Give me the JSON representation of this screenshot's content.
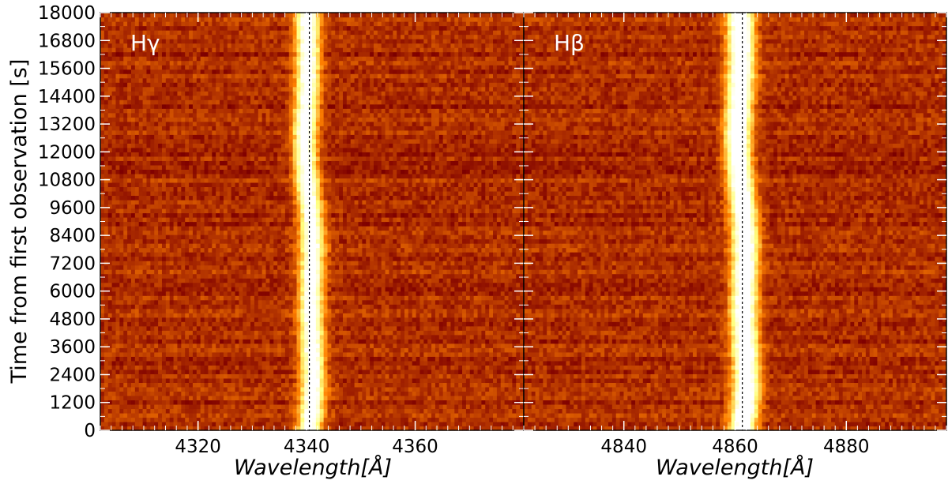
{
  "chart_data": [
    {
      "type": "heatmap",
      "panel_label": "Hγ",
      "xlabel": "Wavelength[Å]",
      "ylabel": "Time from first observation [s]",
      "xlim": [
        4302,
        4380
      ],
      "ylim": [
        0,
        18000
      ],
      "xticks": [
        4320,
        4340,
        4360
      ],
      "yticks": [
        0,
        1200,
        2400,
        3600,
        4800,
        6000,
        7200,
        8400,
        9600,
        10800,
        12000,
        13200,
        14400,
        15600,
        16800,
        18000
      ],
      "line_center": 4340.5,
      "reference_line": 4340.5,
      "line_width": 2.6,
      "line_strength": 1.0,
      "colormap": "afmhot",
      "grid": false
    },
    {
      "type": "heatmap",
      "panel_label": "Hβ",
      "xlabel": "Wavelength[Å]",
      "ylabel": "",
      "xlim": [
        4822,
        4898
      ],
      "ylim": [
        0,
        18000
      ],
      "xticks": [
        4840,
        4860,
        4880
      ],
      "yticks": [
        0,
        1200,
        2400,
        3600,
        4800,
        6000,
        7200,
        8400,
        9600,
        10800,
        12000,
        13200,
        14400,
        15600,
        16800,
        18000
      ],
      "line_center": 4861.3,
      "reference_line": 4861.3,
      "line_width": 2.8,
      "line_strength": 1.15,
      "colormap": "afmhot",
      "grid": false
    }
  ]
}
